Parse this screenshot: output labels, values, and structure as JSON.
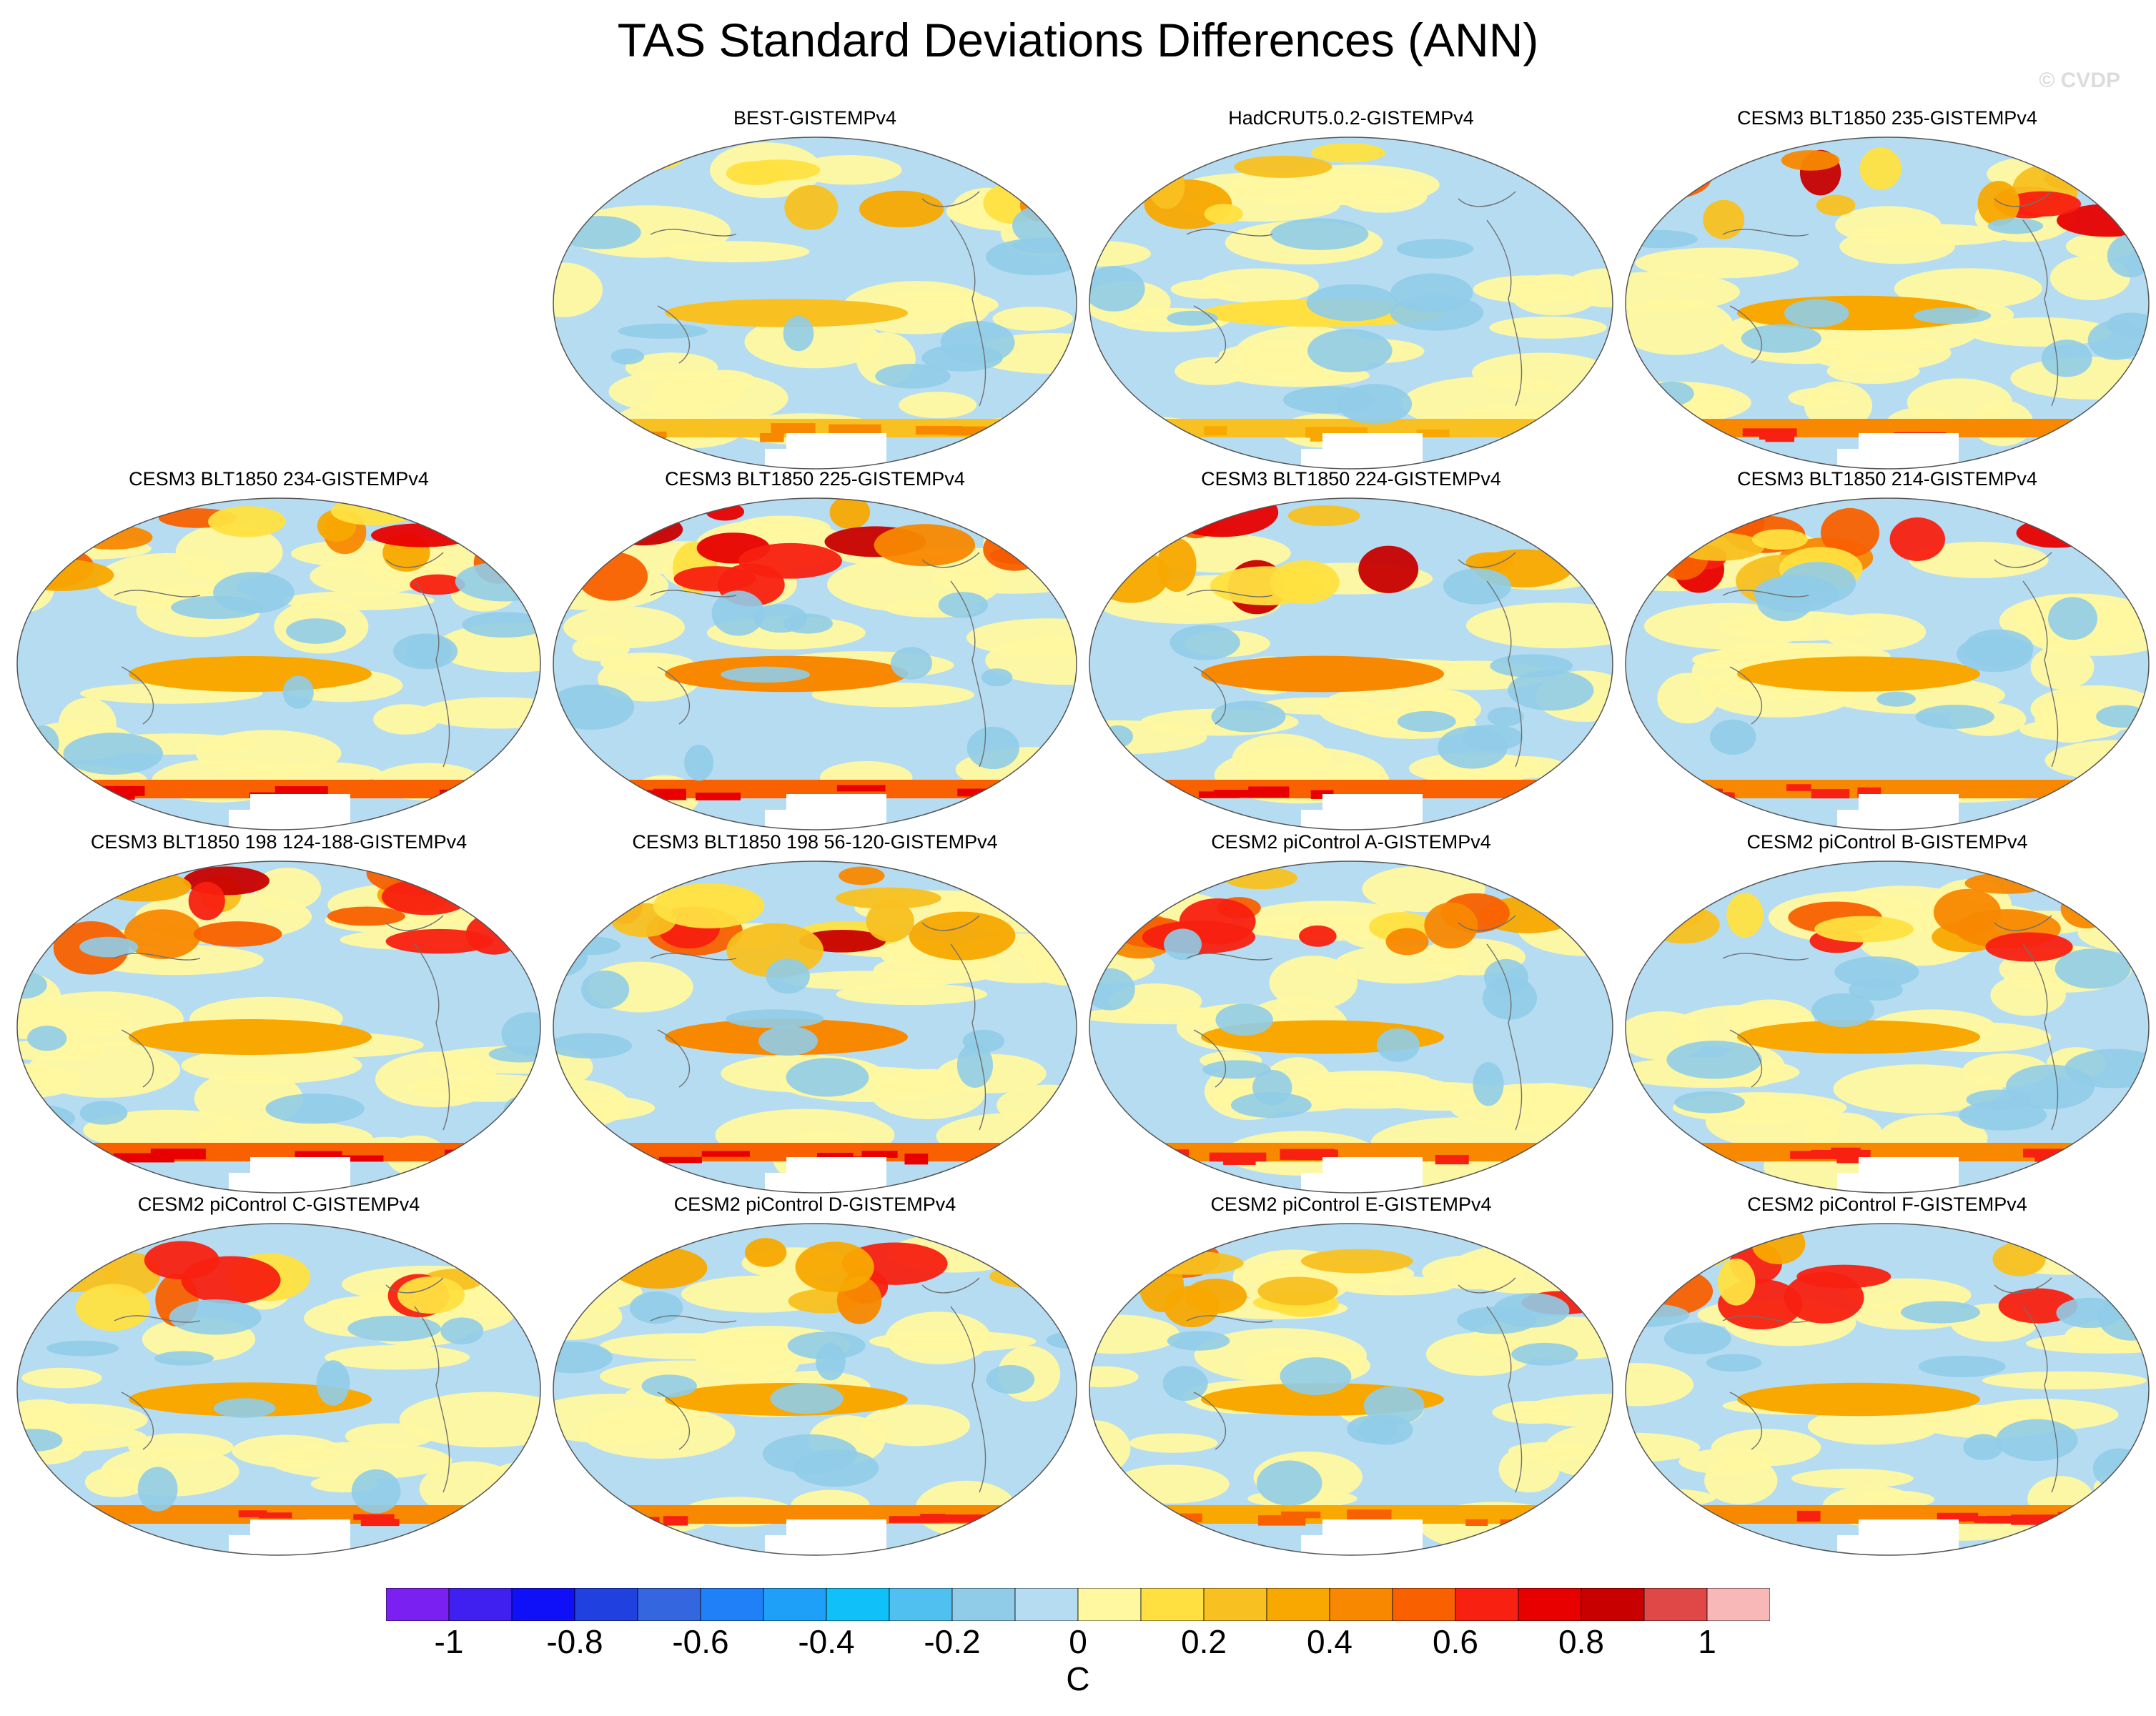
{
  "title": "TAS Standard Deviations Differences (ANN)",
  "watermark": "© CVDP",
  "panels": [
    {
      "label": "BEST-GISTEMPv4",
      "row": 0,
      "col": 1,
      "warmth": 0.18,
      "seed": 3
    },
    {
      "label": "HadCRUT5.0.2-GISTEMPv4",
      "row": 0,
      "col": 2,
      "warmth": 0.12,
      "seed": 7
    },
    {
      "label": "CESM3 BLT1850 235-GISTEMPv4",
      "row": 0,
      "col": 3,
      "warmth": 0.62,
      "seed": 11
    },
    {
      "label": "CESM3 BLT1850 234-GISTEMPv4",
      "row": 1,
      "col": 0,
      "warmth": 0.7,
      "seed": 13
    },
    {
      "label": "CESM3 BLT1850 225-GISTEMPv4",
      "row": 1,
      "col": 1,
      "warmth": 0.72,
      "seed": 17
    },
    {
      "label": "CESM3 BLT1850 224-GISTEMPv4",
      "row": 1,
      "col": 2,
      "warmth": 0.74,
      "seed": 19
    },
    {
      "label": "CESM3 BLT1850 214-GISTEMPv4",
      "row": 1,
      "col": 3,
      "warmth": 0.66,
      "seed": 23
    },
    {
      "label": "CESM3 BLT1850 198 124-188-GISTEMPv4",
      "row": 2,
      "col": 0,
      "warmth": 0.7,
      "seed": 29
    },
    {
      "label": "CESM3 BLT1850 198 56-120-GISTEMPv4",
      "row": 2,
      "col": 1,
      "warmth": 0.72,
      "seed": 31
    },
    {
      "label": "CESM2 piControl A-GISTEMPv4",
      "row": 2,
      "col": 2,
      "warmth": 0.55,
      "seed": 37
    },
    {
      "label": "CESM2 piControl B-GISTEMPv4",
      "row": 2,
      "col": 3,
      "warmth": 0.55,
      "seed": 41
    },
    {
      "label": "CESM2 piControl C-GISTEMPv4",
      "row": 3,
      "col": 0,
      "warmth": 0.58,
      "seed": 43
    },
    {
      "label": "CESM2 piControl D-GISTEMPv4",
      "row": 3,
      "col": 1,
      "warmth": 0.5,
      "seed": 47
    },
    {
      "label": "CESM2 piControl E-GISTEMPv4",
      "row": 3,
      "col": 2,
      "warmth": 0.48,
      "seed": 53
    },
    {
      "label": "CESM2 piControl F-GISTEMPv4",
      "row": 3,
      "col": 3,
      "warmth": 0.52,
      "seed": 59
    }
  ],
  "colorbar": {
    "unit": "C",
    "labels": [
      "-1",
      "-0.8",
      "-0.6",
      "-0.4",
      "-0.2",
      "0",
      "0.2",
      "0.4",
      "0.6",
      "0.8",
      "1"
    ],
    "colors": [
      "#7a20f0",
      "#4020f0",
      "#1010f8",
      "#2040e0",
      "#3466e0",
      "#2080f8",
      "#1ea0f8",
      "#10c0f8",
      "#50c0f0",
      "#90cce8",
      "#b6dcf2",
      "#fff8a0",
      "#ffe040",
      "#f8c020",
      "#f8a800",
      "#f88800",
      "#f86000",
      "#f82010",
      "#e80000",
      "#c80000",
      "#e04848",
      "#f8b8b8"
    ]
  }
}
